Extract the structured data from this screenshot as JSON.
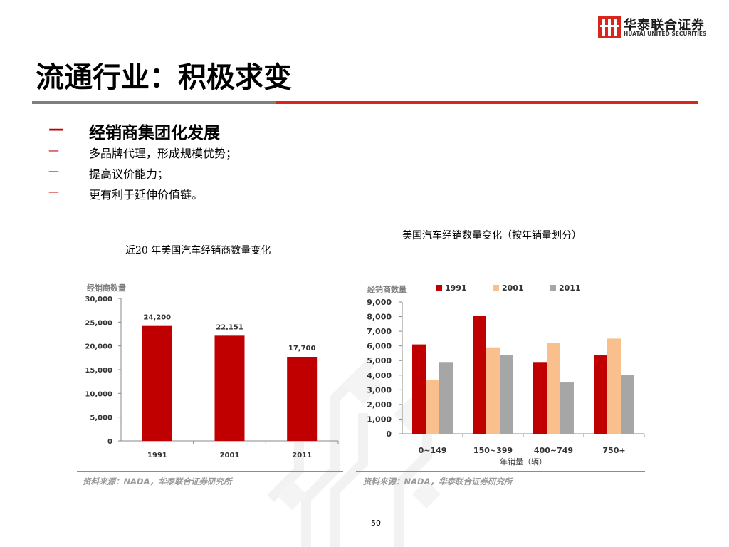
{
  "logo": {
    "name": "华泰联合证券",
    "english": "HUATAI UNITED SECURITIES"
  },
  "title": "流通行业：积极求变",
  "bullets": {
    "main": "经销商集团化发展",
    "items": [
      "多品牌代理，形成规模优势；",
      "提高议价能力；",
      "更有利于延伸价值链。"
    ],
    "dash": "—"
  },
  "captions": {
    "left": "近20 年美国汽车经销商数量变化",
    "right": "美国汽车经销数量变化（按年销量划分）"
  },
  "sources": {
    "left": "资料来源：NADA，华泰联合证券研究所",
    "right": "资料来源：NADA，华泰联合证券研究所"
  },
  "page_number": "50",
  "chart_data": [
    {
      "type": "bar",
      "ylabel": "经销商数量",
      "categories": [
        "1991",
        "2001",
        "2011"
      ],
      "values": [
        24200,
        22151,
        17700
      ],
      "value_labels": [
        "24,200",
        "22,151",
        "17,700"
      ],
      "ylim": [
        0,
        30000
      ],
      "yticks": [
        "0",
        "5,000",
        "10,000",
        "15,000",
        "20,000",
        "25,000",
        "30,000"
      ],
      "color": "#c00000"
    },
    {
      "type": "bar",
      "ylabel": "经销商数量",
      "xlabel": "年销量（辆）",
      "categories": [
        "0~149",
        "150~399",
        "400~749",
        "750+"
      ],
      "series": [
        {
          "name": "1991",
          "values": [
            6100,
            8050,
            4900,
            5350
          ],
          "color": "#c00000"
        },
        {
          "name": "2001",
          "values": [
            3700,
            5900,
            6200,
            6500
          ],
          "color": "#f9c08e"
        },
        {
          "name": "2011",
          "values": [
            4900,
            5400,
            3500,
            4000
          ],
          "color": "#a6a6a6"
        }
      ],
      "ylim": [
        0,
        9000
      ],
      "yticks": [
        "0",
        "1,000",
        "2,000",
        "3,000",
        "4,000",
        "5,000",
        "6,000",
        "7,000",
        "8,000",
        "9,000"
      ],
      "legend": "top"
    }
  ]
}
